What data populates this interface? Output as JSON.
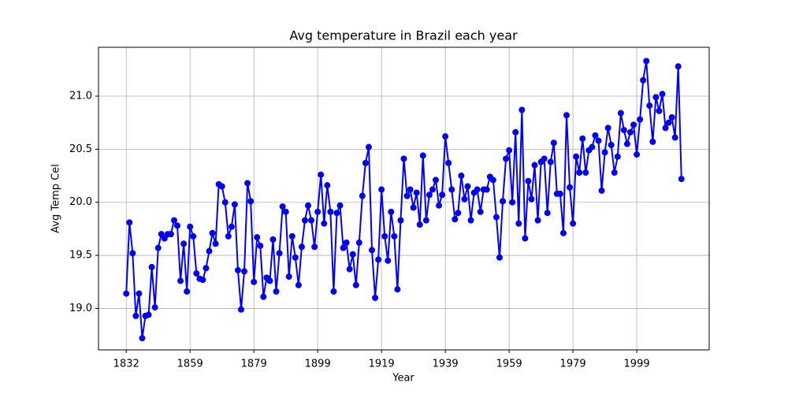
{
  "chart_data": {
    "type": "line",
    "title": "Avg temperature in Brazil each year",
    "x_label": "Year",
    "y_label": "Avg Temp Cel",
    "categories": [
      "1832",
      null,
      null,
      null,
      null,
      null,
      null,
      null,
      null,
      null,
      null,
      null,
      null,
      null,
      null,
      null,
      null,
      null,
      null,
      null,
      "1859",
      null,
      null,
      null,
      null,
      null,
      null,
      null,
      null,
      null,
      null,
      null,
      null,
      null,
      null,
      null,
      null,
      null,
      null,
      null,
      "1879",
      null,
      null,
      null,
      null,
      null,
      null,
      null,
      null,
      null,
      null,
      null,
      null,
      null,
      null,
      null,
      null,
      null,
      null,
      null,
      "1899",
      null,
      null,
      null,
      null,
      null,
      null,
      null,
      null,
      null,
      null,
      null,
      null,
      null,
      null,
      null,
      null,
      null,
      null,
      null,
      "1919",
      null,
      null,
      null,
      null,
      null,
      null,
      null,
      null,
      null,
      null,
      null,
      null,
      null,
      null,
      null,
      null,
      null,
      null,
      null,
      "1939",
      null,
      null,
      null,
      null,
      null,
      null,
      null,
      null,
      null,
      null,
      null,
      null,
      null,
      null,
      null,
      null,
      null,
      null,
      null,
      "1959",
      null,
      null,
      null,
      null,
      null,
      null,
      null,
      null,
      null,
      null,
      null,
      null,
      null,
      null,
      null,
      null,
      null,
      null,
      null,
      "1979",
      null,
      null,
      null,
      null,
      null,
      null,
      null,
      null,
      null,
      null,
      null,
      null,
      null,
      null,
      null,
      null,
      null,
      null,
      null,
      "1999",
      null,
      null,
      null,
      null,
      null,
      null,
      null,
      null,
      null,
      null,
      null,
      null,
      null,
      null
    ],
    "series": [
      {
        "color": "#0000ff",
        "values": [
          19.14,
          19.81,
          19.52,
          18.93,
          19.14,
          18.72,
          18.93,
          18.94,
          19.39,
          19.01,
          19.57,
          19.7,
          19.66,
          19.7,
          19.7,
          19.83,
          19.78,
          19.26,
          19.61,
          19.16,
          19.77,
          19.68,
          19.33,
          19.28,
          19.27,
          19.38,
          19.54,
          19.71,
          19.61,
          20.17,
          20.15,
          20.0,
          19.68,
          19.77,
          19.98,
          19.36,
          18.99,
          19.35,
          20.18,
          20.01,
          19.25,
          19.67,
          19.59,
          19.11,
          19.29,
          19.26,
          19.65,
          19.16,
          19.52,
          19.96,
          19.91,
          19.3,
          19.68,
          19.48,
          19.22,
          19.58,
          19.83,
          19.97,
          19.83,
          19.58,
          19.91,
          20.26,
          19.8,
          20.16,
          19.91,
          19.16,
          19.9,
          19.97,
          19.57,
          19.62,
          19.37,
          19.51,
          19.22,
          19.62,
          20.06,
          20.37,
          20.52,
          19.55,
          19.1,
          19.46,
          20.12,
          19.68,
          19.45,
          19.91,
          19.68,
          19.18,
          19.83,
          20.41,
          20.06,
          20.12,
          19.95,
          20.09,
          19.79,
          20.44,
          19.83,
          20.07,
          20.12,
          20.21,
          19.97,
          20.07,
          20.62,
          20.37,
          20.12,
          19.84,
          19.9,
          20.25,
          20.03,
          20.15,
          19.83,
          20.09,
          20.12,
          19.91,
          20.12,
          20.12,
          20.24,
          20.21,
          19.86,
          19.48,
          20.01,
          20.41,
          20.49,
          20.0,
          20.66,
          19.8,
          20.87,
          19.66,
          20.2,
          20.03,
          20.35,
          19.83,
          20.38,
          20.41,
          19.9,
          20.38,
          20.56,
          20.08,
          20.08,
          19.71,
          20.82,
          20.14,
          19.8,
          20.43,
          20.28,
          20.6,
          20.28,
          20.49,
          20.52,
          20.63,
          20.58,
          20.11,
          20.47,
          20.7,
          20.54,
          20.28,
          20.43,
          20.84,
          20.68,
          20.55,
          20.66,
          20.73,
          20.45,
          20.78,
          21.15,
          21.33,
          20.91,
          20.57,
          20.99,
          20.86,
          21.02,
          20.7,
          20.75,
          20.8,
          20.61,
          21.28,
          20.22
        ]
      }
    ],
    "ylim": [
      18.61,
      21.46
    ],
    "yticks": [
      {
        "value": 19.0,
        "label": "19.0"
      },
      {
        "value": 19.5,
        "label": "19.5"
      },
      {
        "value": 20.0,
        "label": "20.0"
      },
      {
        "value": 20.5,
        "label": "20.5"
      },
      {
        "value": 21.0,
        "label": "21.0"
      }
    ],
    "grid": true
  }
}
